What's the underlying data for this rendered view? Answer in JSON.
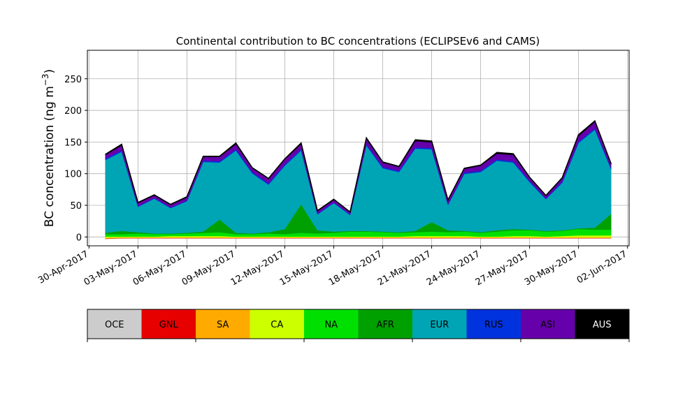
{
  "chart_data": {
    "type": "area",
    "title": "Continental contribution to BC concentrations (ECLIPSEv6 and CAMS)",
    "ylabel": "BC concentration (ng m",
    "ylabel_sup": "−3",
    "ylabel_close": ")",
    "xlabel": "",
    "stacked": true,
    "grid": true,
    "x_range": [
      "2017-04-30",
      "2017-06-02"
    ],
    "ylim": [
      -14,
      295
    ],
    "y_ticks": [
      0,
      50,
      100,
      150,
      200,
      250
    ],
    "x_ticks": [
      "30-Apr-2017",
      "03-May-2017",
      "06-May-2017",
      "09-May-2017",
      "12-May-2017",
      "15-May-2017",
      "18-May-2017",
      "21-May-2017",
      "24-May-2017",
      "27-May-2017",
      "30-May-2017",
      "02-Jun-2017"
    ],
    "x_tick_dates": [
      "2017-04-30",
      "2017-05-03",
      "2017-05-06",
      "2017-05-09",
      "2017-05-12",
      "2017-05-15",
      "2017-05-18",
      "2017-05-21",
      "2017-05-24",
      "2017-05-27",
      "2017-05-30",
      "2017-06-02"
    ],
    "dates": [
      "2017-05-01",
      "2017-05-02",
      "2017-05-03",
      "2017-05-04",
      "2017-05-05",
      "2017-05-06",
      "2017-05-07",
      "2017-05-08",
      "2017-05-09",
      "2017-05-10",
      "2017-05-11",
      "2017-05-12",
      "2017-05-13",
      "2017-05-14",
      "2017-05-15",
      "2017-05-16",
      "2017-05-17",
      "2017-05-18",
      "2017-05-19",
      "2017-05-20",
      "2017-05-21",
      "2017-05-22",
      "2017-05-23",
      "2017-05-24",
      "2017-05-25",
      "2017-05-26",
      "2017-05-27",
      "2017-05-28",
      "2017-05-29",
      "2017-05-30",
      "2017-05-31",
      "2017-06-01"
    ],
    "series": [
      {
        "name": "OCE",
        "color": "#cccccc",
        "values": [
          -3,
          -2,
          -2,
          -2,
          -2,
          -2,
          -2,
          -2,
          -2,
          -2,
          -2,
          -2,
          -2,
          -2,
          -2,
          -2,
          -2,
          -2,
          -2,
          -2,
          -2,
          -2,
          -2,
          -2,
          -2,
          -2,
          -2,
          -2,
          -2,
          -2,
          -2,
          -2
        ]
      },
      {
        "name": "GNL",
        "color": "#e60000",
        "values": [
          0.5,
          0.5,
          0.5,
          0.5,
          0.5,
          0.5,
          0.5,
          0.5,
          0.5,
          0.5,
          0.5,
          0.5,
          0.5,
          0.5,
          0.5,
          0.5,
          0.5,
          0.5,
          0.5,
          0.5,
          0.5,
          0.5,
          0.5,
          0.5,
          0.5,
          0.5,
          0.5,
          0.5,
          0.5,
          0.5,
          0.5,
          0.5
        ]
      },
      {
        "name": "SA",
        "color": "#ffaa00",
        "values": [
          1,
          1,
          1,
          1,
          1,
          1,
          1,
          1,
          1,
          1,
          1,
          1,
          1,
          1,
          1,
          1,
          1,
          1,
          1,
          1,
          1,
          1,
          1,
          1,
          1,
          1,
          1,
          1,
          1,
          1,
          1,
          1
        ]
      },
      {
        "name": "CA",
        "color": "#ccff00",
        "values": [
          2,
          1,
          1,
          1,
          2,
          2,
          2,
          2,
          1,
          1,
          1,
          1,
          1,
          1,
          1,
          1,
          1,
          1,
          1,
          2,
          2,
          2,
          2,
          1,
          1,
          2,
          2,
          1,
          2,
          3,
          3,
          3
        ]
      },
      {
        "name": "NA",
        "color": "#00e000",
        "values": [
          4,
          4,
          5,
          4,
          3,
          4,
          5,
          6,
          4,
          4,
          5,
          4,
          6,
          5,
          6,
          8,
          8,
          7,
          6,
          6,
          7,
          6,
          7,
          6,
          8,
          9,
          9,
          8,
          8,
          10,
          9,
          9
        ]
      },
      {
        "name": "AFR",
        "color": "#00a000",
        "values": [
          2,
          5,
          2,
          1,
          1,
          1,
          2,
          20,
          2,
          1,
          2,
          8,
          45,
          5,
          2,
          1,
          1,
          1,
          1,
          2,
          15,
          3,
          1,
          1,
          2,
          2,
          1,
          1,
          1,
          1,
          3,
          25
        ]
      },
      {
        "name": "EUR",
        "color": "#00a5b5",
        "values": [
          115,
          125,
          40,
          55,
          40,
          50,
          110,
          90,
          130,
          95,
          75,
          100,
          85,
          25,
          45,
          25,
          135,
          100,
          95,
          130,
          115,
          40,
          90,
          95,
          110,
          105,
          75,
          50,
          75,
          135,
          155,
          70
        ]
      },
      {
        "name": "RUS",
        "color": "#0033dd",
        "values": [
          2,
          2,
          1,
          1,
          1,
          1,
          2,
          2,
          2,
          2,
          2,
          2,
          2,
          1,
          1,
          1,
          2,
          2,
          2,
          2,
          2,
          1,
          2,
          2,
          2,
          2,
          2,
          1,
          2,
          2,
          2,
          2
        ]
      },
      {
        "name": "ASI",
        "color": "#6600aa",
        "values": [
          6,
          8,
          5,
          4,
          4,
          5,
          6,
          7,
          8,
          6,
          7,
          8,
          8,
          4,
          4,
          3,
          8,
          7,
          6,
          10,
          9,
          6,
          6,
          8,
          9,
          10,
          5,
          4,
          5,
          9,
          10,
          6
        ]
      },
      {
        "name": "AUS",
        "color": "#000000",
        "values": [
          1,
          2,
          1,
          1,
          1,
          1,
          1,
          1,
          2,
          1,
          1,
          1,
          2,
          1,
          1,
          1,
          2,
          1,
          1,
          2,
          2,
          1,
          1,
          1,
          2,
          2,
          1,
          1,
          1,
          2,
          2,
          1
        ]
      }
    ],
    "legend": {
      "placement": "below",
      "entries": [
        {
          "label": "OCE",
          "color": "#cccccc",
          "text_color": "#000000"
        },
        {
          "label": "GNL",
          "color": "#e60000",
          "text_color": "#000000"
        },
        {
          "label": "SA",
          "color": "#ffaa00",
          "text_color": "#000000"
        },
        {
          "label": "CA",
          "color": "#ccff00",
          "text_color": "#000000"
        },
        {
          "label": "NA",
          "color": "#00e000",
          "text_color": "#000000"
        },
        {
          "label": "AFR",
          "color": "#00a000",
          "text_color": "#000000"
        },
        {
          "label": "EUR",
          "color": "#00a5b5",
          "text_color": "#000000"
        },
        {
          "label": "RUS",
          "color": "#0033dd",
          "text_color": "#000000"
        },
        {
          "label": "ASI",
          "color": "#6600aa",
          "text_color": "#000000"
        },
        {
          "label": "AUS",
          "color": "#000000",
          "text_color": "#ffffff"
        }
      ]
    }
  }
}
